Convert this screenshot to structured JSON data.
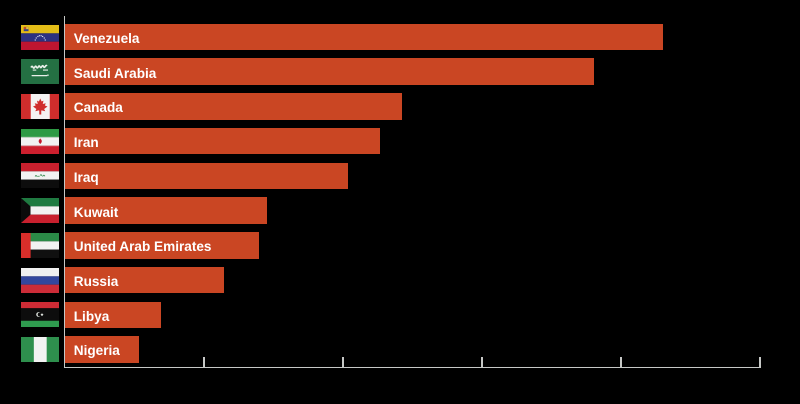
{
  "chart_data": {
    "type": "bar",
    "orientation": "horizontal",
    "title": "",
    "categories": [
      "Venezuela",
      "Saudi Arabia",
      "Canada",
      "Iran",
      "Iraq",
      "Kuwait",
      "United Arab Emirates",
      "Russia",
      "Libya",
      "Nigeria"
    ],
    "values": [
      300.9,
      266.5,
      169.7,
      158.4,
      142.5,
      101.5,
      97.8,
      80.0,
      48.4,
      37.1
    ],
    "flags": [
      "venezuela-flag-icon",
      "saudi-arabia-flag-icon",
      "canada-flag-icon",
      "iran-flag-icon",
      "iraq-flag-icon",
      "kuwait-flag-icon",
      "united-arab-emirates-flag-icon",
      "russia-flag-icon",
      "libya-flag-icon",
      "nigeria-flag-icon"
    ],
    "xlabel": "",
    "ylabel": "",
    "xlim": [
      0,
      350
    ],
    "xticks": [
      70,
      140,
      210,
      280,
      350
    ],
    "xtick_labels": [],
    "grid": false,
    "legend": false,
    "colors": {
      "bar": "#ca4623",
      "background": "#000000",
      "axis": "#c6c8c6",
      "label_text": "#ffffff"
    }
  }
}
